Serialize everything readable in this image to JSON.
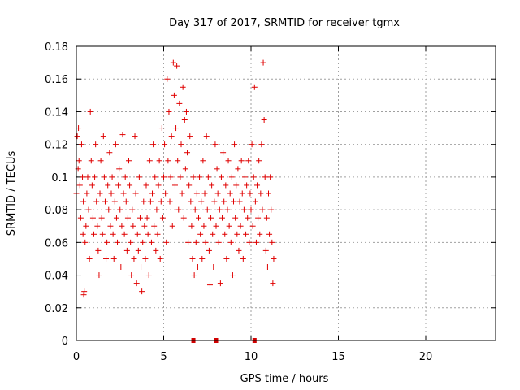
{
  "chart_data": {
    "type": "scatter",
    "title": "Day 317 of 2017, SRMTID for receiver tgmx",
    "xlabel": "GPS time / hours",
    "ylabel": "SRMTID / TECUs",
    "xlim": [
      0,
      24
    ],
    "ylim": [
      0,
      0.18
    ],
    "xticks": [
      0,
      5,
      10,
      15,
      20
    ],
    "xtick_labels": [
      "0",
      "5",
      "10",
      "15",
      "20"
    ],
    "yticks": [
      0,
      0.02,
      0.04,
      0.06,
      0.08,
      0.1,
      0.12,
      0.14,
      0.16,
      0.18
    ],
    "ytick_labels": [
      "0",
      "0.02",
      "0.04",
      "0.06",
      "0.08",
      "0.1",
      "0.12",
      "0.14",
      "0.16",
      "0.18"
    ],
    "grid": true,
    "marker": "+",
    "color": "#e00000",
    "series": [
      {
        "name": "SRMTID",
        "points": [
          [
            0.0,
            0.09
          ],
          [
            0.05,
            0.125
          ],
          [
            0.1,
            0.105
          ],
          [
            0.12,
            0.13
          ],
          [
            0.15,
            0.11
          ],
          [
            0.2,
            0.095
          ],
          [
            0.25,
            0.075
          ],
          [
            0.3,
            0.12
          ],
          [
            0.35,
            0.1
          ],
          [
            0.38,
            0.065
          ],
          [
            0.4,
            0.085
          ],
          [
            0.42,
            0.028
          ],
          [
            0.45,
            0.03
          ],
          [
            0.5,
            0.06
          ],
          [
            0.55,
            0.07
          ],
          [
            0.6,
            0.09
          ],
          [
            0.65,
            0.1
          ],
          [
            0.7,
            0.08
          ],
          [
            0.75,
            0.05
          ],
          [
            0.8,
            0.14
          ],
          [
            0.85,
            0.11
          ],
          [
            0.9,
            0.095
          ],
          [
            0.95,
            0.075
          ],
          [
            1.0,
            0.065
          ],
          [
            1.05,
            0.1
          ],
          [
            1.1,
            0.12
          ],
          [
            1.15,
            0.085
          ],
          [
            1.2,
            0.07
          ],
          [
            1.25,
            0.055
          ],
          [
            1.3,
            0.04
          ],
          [
            1.35,
            0.09
          ],
          [
            1.4,
            0.11
          ],
          [
            1.45,
            0.075
          ],
          [
            1.5,
            0.065
          ],
          [
            1.55,
            0.125
          ],
          [
            1.6,
            0.1
          ],
          [
            1.65,
            0.085
          ],
          [
            1.7,
            0.05
          ],
          [
            1.75,
            0.06
          ],
          [
            1.8,
            0.095
          ],
          [
            1.85,
            0.08
          ],
          [
            1.9,
            0.115
          ],
          [
            1.95,
            0.07
          ],
          [
            2.0,
            0.09
          ],
          [
            2.05,
            0.1
          ],
          [
            2.1,
            0.065
          ],
          [
            2.15,
            0.05
          ],
          [
            2.2,
            0.085
          ],
          [
            2.25,
            0.12
          ],
          [
            2.3,
            0.075
          ],
          [
            2.35,
            0.06
          ],
          [
            2.4,
            0.095
          ],
          [
            2.45,
            0.105
          ],
          [
            2.5,
            0.08
          ],
          [
            2.55,
            0.045
          ],
          [
            2.6,
            0.07
          ],
          [
            2.65,
            0.126
          ],
          [
            2.7,
            0.09
          ],
          [
            2.75,
            0.065
          ],
          [
            2.8,
            0.1
          ],
          [
            2.85,
            0.085
          ],
          [
            2.9,
            0.055
          ],
          [
            2.95,
            0.075
          ],
          [
            3.0,
            0.11
          ],
          [
            3.05,
            0.095
          ],
          [
            3.1,
            0.06
          ],
          [
            3.15,
            0.04
          ],
          [
            3.2,
            0.08
          ],
          [
            3.25,
            0.07
          ],
          [
            3.3,
            0.05
          ],
          [
            3.35,
            0.125
          ],
          [
            3.4,
            0.09
          ],
          [
            3.45,
            0.035
          ],
          [
            3.5,
            0.065
          ],
          [
            3.55,
            0.055
          ],
          [
            3.6,
            0.1
          ],
          [
            3.65,
            0.075
          ],
          [
            3.7,
            0.045
          ],
          [
            3.75,
            0.03
          ],
          [
            3.8,
            0.06
          ],
          [
            3.85,
            0.085
          ],
          [
            3.9,
            0.07
          ],
          [
            3.95,
            0.05
          ],
          [
            4.0,
            0.095
          ],
          [
            4.05,
            0.075
          ],
          [
            4.1,
            0.065
          ],
          [
            4.15,
            0.04
          ],
          [
            4.2,
            0.11
          ],
          [
            4.25,
            0.085
          ],
          [
            4.3,
            0.06
          ],
          [
            4.35,
            0.09
          ],
          [
            4.4,
            0.12
          ],
          [
            4.45,
            0.07
          ],
          [
            4.5,
            0.1
          ],
          [
            4.55,
            0.055
          ],
          [
            4.6,
            0.08
          ],
          [
            4.65,
            0.065
          ],
          [
            4.7,
            0.095
          ],
          [
            4.75,
            0.11
          ],
          [
            4.8,
            0.05
          ],
          [
            4.85,
            0.085
          ],
          [
            4.9,
            0.13
          ],
          [
            4.95,
            0.075
          ],
          [
            5.0,
            0.1
          ],
          [
            5.05,
            0.12
          ],
          [
            5.1,
            0.09
          ],
          [
            5.15,
            0.06
          ],
          [
            5.2,
            0.16
          ],
          [
            5.25,
            0.11
          ],
          [
            5.3,
            0.14
          ],
          [
            5.35,
            0.085
          ],
          [
            5.4,
            0.1
          ],
          [
            5.45,
            0.125
          ],
          [
            5.5,
            0.07
          ],
          [
            5.55,
            0.17
          ],
          [
            5.6,
            0.15
          ],
          [
            5.65,
            0.095
          ],
          [
            5.7,
            0.13
          ],
          [
            5.75,
            0.168
          ],
          [
            5.8,
            0.11
          ],
          [
            5.85,
            0.08
          ],
          [
            5.9,
            0.145
          ],
          [
            5.95,
            0.1
          ],
          [
            6.0,
            0.12
          ],
          [
            6.05,
            0.09
          ],
          [
            6.1,
            0.155
          ],
          [
            6.15,
            0.075
          ],
          [
            6.2,
            0.135
          ],
          [
            6.25,
            0.105
          ],
          [
            6.3,
            0.14
          ],
          [
            6.35,
            0.115
          ],
          [
            6.4,
            0.06
          ],
          [
            6.45,
            0.095
          ],
          [
            6.5,
            0.125
          ],
          [
            6.55,
            0.085
          ],
          [
            6.6,
            0.07
          ],
          [
            6.65,
            0.05
          ],
          [
            6.7,
            0.1
          ],
          [
            6.75,
            0.04
          ],
          [
            6.8,
            0.08
          ],
          [
            6.85,
            0.06
          ],
          [
            6.9,
            0.09
          ],
          [
            6.95,
            0.045
          ],
          [
            7.0,
            0.075
          ],
          [
            7.05,
            0.1
          ],
          [
            7.1,
            0.065
          ],
          [
            7.15,
            0.085
          ],
          [
            7.2,
            0.05
          ],
          [
            7.25,
            0.11
          ],
          [
            7.3,
            0.07
          ],
          [
            7.35,
            0.09
          ],
          [
            7.4,
            0.06
          ],
          [
            7.45,
            0.125
          ],
          [
            7.5,
            0.08
          ],
          [
            7.55,
            0.1
          ],
          [
            7.6,
            0.055
          ],
          [
            7.65,
            0.034
          ],
          [
            7.7,
            0.075
          ],
          [
            7.75,
            0.095
          ],
          [
            7.8,
            0.065
          ],
          [
            7.85,
            0.045
          ],
          [
            7.9,
            0.085
          ],
          [
            7.95,
            0.12
          ],
          [
            8.0,
            0.07
          ],
          [
            8.05,
            0.105
          ],
          [
            8.1,
            0.09
          ],
          [
            8.15,
            0.06
          ],
          [
            8.2,
            0.08
          ],
          [
            8.25,
            0.035
          ],
          [
            8.3,
            0.1
          ],
          [
            8.35,
            0.075
          ],
          [
            8.4,
            0.115
          ],
          [
            8.45,
            0.085
          ],
          [
            8.5,
            0.065
          ],
          [
            8.55,
            0.095
          ],
          [
            8.6,
            0.05
          ],
          [
            8.65,
            0.08
          ],
          [
            8.7,
            0.11
          ],
          [
            8.75,
            0.07
          ],
          [
            8.8,
            0.09
          ],
          [
            8.85,
            0.06
          ],
          [
            8.9,
            0.1
          ],
          [
            8.95,
            0.04
          ],
          [
            9.0,
            0.085
          ],
          [
            9.05,
            0.12
          ],
          [
            9.1,
            0.075
          ],
          [
            9.15,
            0.095
          ],
          [
            9.2,
            0.065
          ],
          [
            9.25,
            0.105
          ],
          [
            9.3,
            0.055
          ],
          [
            9.35,
            0.085
          ],
          [
            9.4,
            0.07
          ],
          [
            9.45,
            0.11
          ],
          [
            9.5,
            0.09
          ],
          [
            9.55,
            0.05
          ],
          [
            9.6,
            0.08
          ],
          [
            9.65,
            0.1
          ],
          [
            9.7,
            0.065
          ],
          [
            9.75,
            0.095
          ],
          [
            9.8,
            0.075
          ],
          [
            9.85,
            0.11
          ],
          [
            9.9,
            0.06
          ],
          [
            9.95,
            0.09
          ],
          [
            10.0,
            0.08
          ],
          [
            10.05,
            0.12
          ],
          [
            10.1,
            0.07
          ],
          [
            10.15,
            0.1
          ],
          [
            10.2,
            0.155
          ],
          [
            10.25,
            0.085
          ],
          [
            10.3,
            0.06
          ],
          [
            10.35,
            0.095
          ],
          [
            10.4,
            0.075
          ],
          [
            10.45,
            0.11
          ],
          [
            10.5,
            0.065
          ],
          [
            10.55,
            0.09
          ],
          [
            10.6,
            0.12
          ],
          [
            10.65,
            0.08
          ],
          [
            10.7,
            0.17
          ],
          [
            10.75,
            0.135
          ],
          [
            10.8,
            0.1
          ],
          [
            10.85,
            0.055
          ],
          [
            10.9,
            0.075
          ],
          [
            10.95,
            0.045
          ],
          [
            11.0,
            0.09
          ],
          [
            11.05,
            0.065
          ],
          [
            11.1,
            0.1
          ],
          [
            11.15,
            0.08
          ],
          [
            11.2,
            0.06
          ],
          [
            11.25,
            0.035
          ],
          [
            11.3,
            0.05
          ]
        ]
      }
    ],
    "zero_markers_x": [
      6.7,
      8.0,
      10.2
    ]
  }
}
